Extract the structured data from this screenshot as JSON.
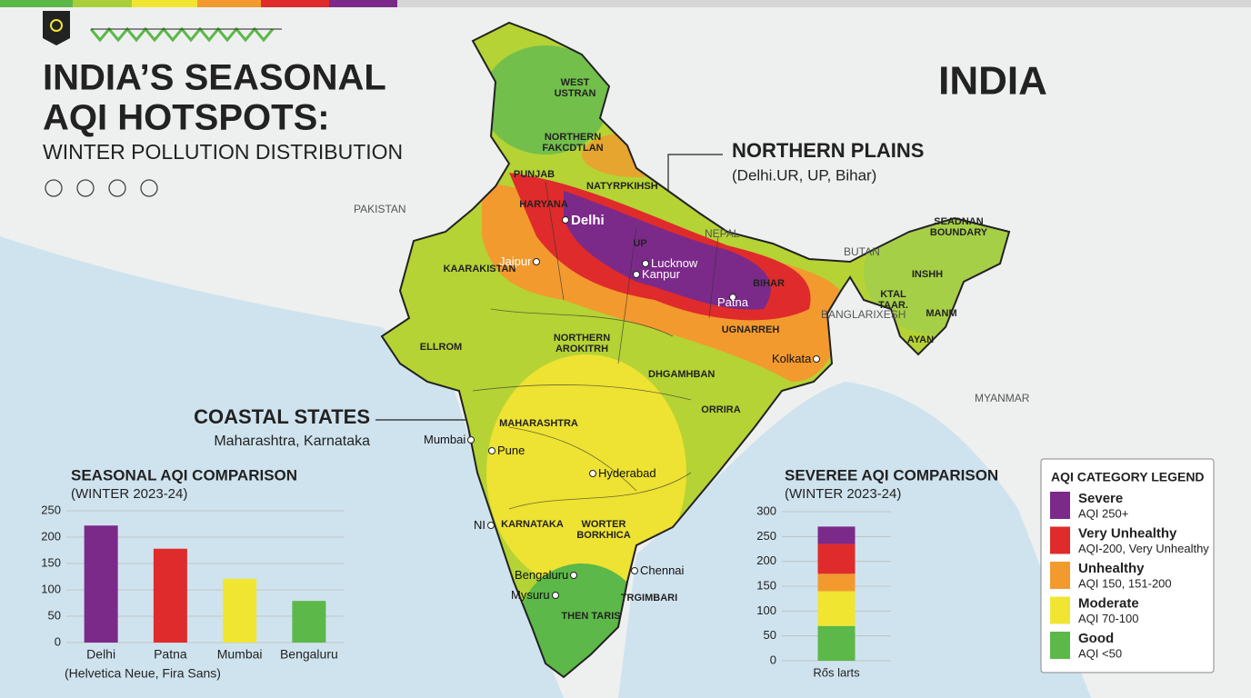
{
  "header": {
    "title_lines": [
      "INDIA’S SEASONAL",
      "AQI HOTSPOTS:"
    ],
    "subtitle": "WINTER POLLUTION DISTRIBUTION"
  },
  "map": {
    "title": "INDIA",
    "callouts": [
      {
        "title": "NORTHERN PLAINS",
        "subtitle": "(Delhi.UR, UP, Bihar)"
      },
      {
        "title": "COASTAL STATES",
        "subtitle": "Maharashtra, Karnataka"
      }
    ],
    "country_labels": [
      "PAKISTAN",
      "NEPAL",
      "BUTAN",
      "BANGLARIXESH",
      "MYANMAR"
    ],
    "region_labels": [
      "WEST USTRAN",
      "NORTHERN FAKCDTLAN",
      "PUNJAB",
      "NATYRPKIHSH",
      "HARYANA",
      "UP",
      "KAARAKISTAN",
      "BIHAR",
      "ELLROM",
      "NORTHERN AROKITRH",
      "UGNARREH",
      "DHGAMHBAN",
      "ORRIRA",
      "MAHARASHTRA",
      "KARNATAKA",
      "WORTER BORKHICA",
      "TRGIMBARI",
      "THEN TARIS",
      "SEADNAN BOUNDARY",
      "INSHH",
      "KTAL TAAR.",
      "MANM",
      "AYAN"
    ],
    "cities": [
      "Delhi",
      "Jaipur",
      "Lucknow",
      "Kanpur",
      "Patna",
      "Kolkata",
      "Mumbai",
      "Pune",
      "Hyderabad",
      "Bengaluru",
      "Mysuru",
      "Chennai",
      "NI"
    ]
  },
  "chart_data": [
    {
      "type": "bar",
      "title": "SEASONAL AQI COMPARISON",
      "subtitle": "(WINTER 2023-24)",
      "x_label": "(Helvetica Neue, Fira Sans)",
      "categories": [
        "Delhi",
        "Patna",
        "Mumbai",
        "Bengaluru"
      ],
      "values": [
        222,
        178,
        121,
        79
      ],
      "colors": [
        "#7b2a8a",
        "#df2b2b",
        "#f0e632",
        "#5cb848"
      ],
      "ylim": [
        0,
        250
      ],
      "yticks": [
        0,
        50,
        100,
        150,
        200,
        250
      ],
      "grid": true
    },
    {
      "type": "stacked_bar",
      "title": "SEVEREE AQI COMPARISON",
      "subtitle": "(WINTER 2023-24)",
      "legend_title": "AQI CATEGORY LEGEND",
      "categories": [
        "Rős larts"
      ],
      "series": [
        {
          "name": "Severe",
          "range_label": "AQI 250+",
          "color": "#7b2a8a",
          "values": [
            35
          ]
        },
        {
          "name": "Very Unhealthy",
          "range_label": "AQI-200, Very Unhealthy",
          "color": "#df2b2b",
          "values": [
            60
          ]
        },
        {
          "name": "Unhealthy",
          "range_label": "AQI 150, 151-200",
          "color": "#f39a2e",
          "values": [
            35
          ]
        },
        {
          "name": "Moderate",
          "range_label": "AQI 70-100",
          "color": "#f0e632",
          "values": [
            70
          ]
        },
        {
          "name": "Good",
          "range_label": "AQI <50",
          "color": "#5cb848",
          "values": [
            70
          ]
        }
      ],
      "ylim": [
        0,
        300
      ],
      "yticks": [
        0,
        50,
        100,
        150,
        200,
        250,
        300
      ],
      "grid": true
    }
  ]
}
